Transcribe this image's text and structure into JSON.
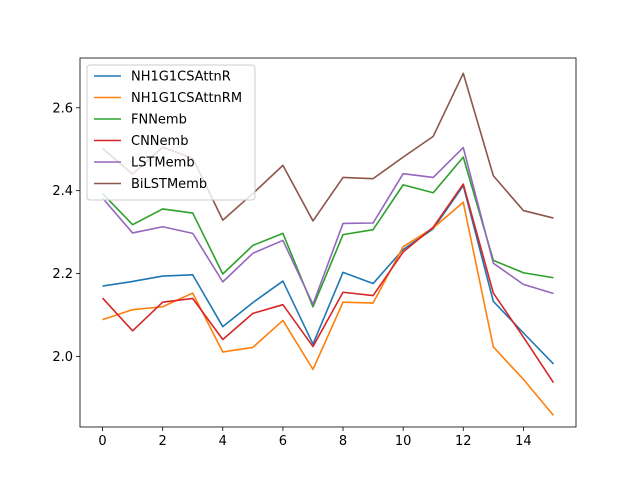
{
  "chart_data": {
    "type": "line",
    "title": "",
    "xlabel": "",
    "ylabel": "",
    "x": [
      0,
      1,
      2,
      3,
      4,
      5,
      6,
      7,
      8,
      9,
      10,
      11,
      12,
      13,
      14,
      15
    ],
    "xlim": [
      -0.75,
      15.75
    ],
    "ylim": [
      1.83,
      2.72
    ],
    "xticks": [
      0,
      2,
      4,
      6,
      8,
      10,
      12,
      14
    ],
    "yticks": [
      2.0,
      2.2,
      2.4,
      2.6
    ],
    "ytick_labels": [
      "2.0",
      "2.2",
      "2.4",
      "2.6"
    ],
    "grid": false,
    "legend_position": "upper-left",
    "series": [
      {
        "name": "NH1G1CSAttnR",
        "color": "#1f77b4",
        "values": [
          2.17,
          2.181,
          2.194,
          2.197,
          2.072,
          2.13,
          2.182,
          2.03,
          2.203,
          2.176,
          2.258,
          2.308,
          2.412,
          2.133,
          2.057,
          1.982
        ]
      },
      {
        "name": "NH1G1CSAttnRM",
        "color": "#ff7f0e",
        "values": [
          2.089,
          2.113,
          2.12,
          2.153,
          2.011,
          2.022,
          2.087,
          1.969,
          2.131,
          2.129,
          2.265,
          2.31,
          2.372,
          2.023,
          1.945,
          1.858
        ]
      },
      {
        "name": "FNNemb",
        "color": "#2ca02c",
        "values": [
          2.393,
          2.318,
          2.356,
          2.346,
          2.199,
          2.268,
          2.297,
          2.12,
          2.294,
          2.306,
          2.414,
          2.395,
          2.481,
          2.232,
          2.202,
          2.19
        ]
      },
      {
        "name": "CNNemb",
        "color": "#d62728",
        "values": [
          2.141,
          2.062,
          2.131,
          2.14,
          2.041,
          2.104,
          2.125,
          2.024,
          2.155,
          2.147,
          2.252,
          2.312,
          2.416,
          2.153,
          2.047,
          1.937
        ]
      },
      {
        "name": "LSTMemb",
        "color": "#9467bd",
        "values": [
          2.382,
          2.298,
          2.313,
          2.297,
          2.18,
          2.249,
          2.28,
          2.126,
          2.321,
          2.322,
          2.441,
          2.432,
          2.504,
          2.225,
          2.174,
          2.152
        ]
      },
      {
        "name": "BiLSTMemb",
        "color": "#8c564b",
        "values": [
          2.502,
          2.44,
          2.505,
          2.478,
          2.329,
          2.393,
          2.461,
          2.327,
          2.432,
          2.429,
          2.481,
          2.531,
          2.683,
          2.436,
          2.352,
          2.334
        ]
      }
    ]
  }
}
